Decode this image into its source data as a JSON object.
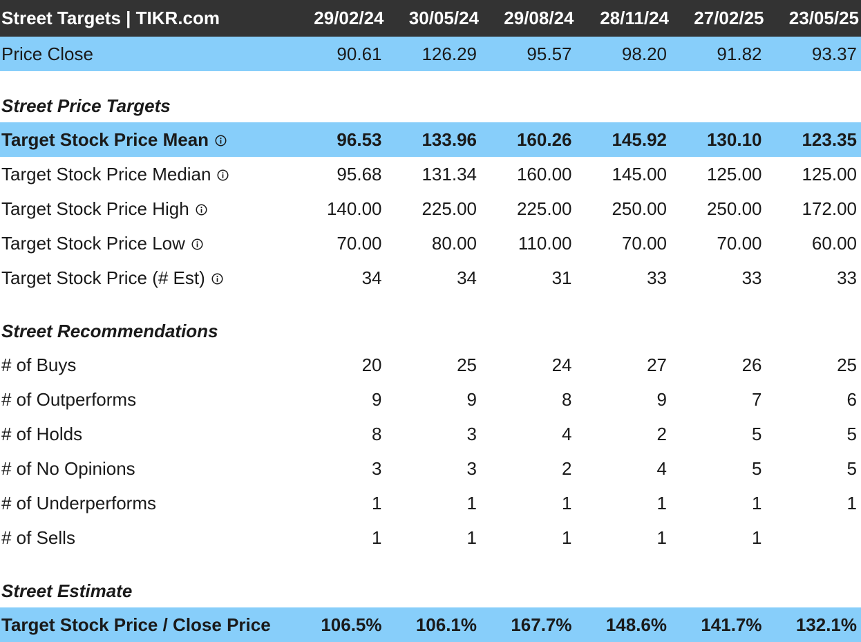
{
  "header": {
    "title": "Street Targets | TIKR.com",
    "dates": [
      "29/02/24",
      "30/05/24",
      "29/08/24",
      "28/11/24",
      "27/02/25",
      "23/05/25"
    ]
  },
  "price_close": {
    "label": "Price Close",
    "values": [
      "90.61",
      "126.29",
      "95.57",
      "98.20",
      "91.82",
      "93.37"
    ]
  },
  "sections": {
    "price_targets": "Street Price Targets",
    "recommendations": "Street Recommendations",
    "estimate": "Street Estimate"
  },
  "price_targets": [
    {
      "label": "Target Stock Price Mean",
      "values": [
        "96.53",
        "133.96",
        "160.26",
        "145.92",
        "130.10",
        "123.35"
      ]
    },
    {
      "label": "Target Stock Price Median",
      "values": [
        "95.68",
        "131.34",
        "160.00",
        "145.00",
        "125.00",
        "125.00"
      ]
    },
    {
      "label": "Target Stock Price High",
      "values": [
        "140.00",
        "225.00",
        "225.00",
        "250.00",
        "250.00",
        "172.00"
      ]
    },
    {
      "label": "Target Stock Price Low",
      "values": [
        "70.00",
        "80.00",
        "110.00",
        "70.00",
        "70.00",
        "60.00"
      ]
    },
    {
      "label": "Target Stock Price (# Est)",
      "values": [
        "34",
        "34",
        "31",
        "33",
        "33",
        "33"
      ]
    }
  ],
  "recommendations": [
    {
      "label": "# of Buys",
      "values": [
        "20",
        "25",
        "24",
        "27",
        "26",
        "25"
      ]
    },
    {
      "label": "# of Outperforms",
      "values": [
        "9",
        "9",
        "8",
        "9",
        "7",
        "6"
      ]
    },
    {
      "label": "# of Holds",
      "values": [
        "8",
        "3",
        "4",
        "2",
        "5",
        "5"
      ]
    },
    {
      "label": "# of No Opinions",
      "values": [
        "3",
        "3",
        "2",
        "4",
        "5",
        "5"
      ]
    },
    {
      "label": "# of Underperforms",
      "values": [
        "1",
        "1",
        "1",
        "1",
        "1",
        "1"
      ]
    },
    {
      "label": "# of Sells",
      "values": [
        "1",
        "1",
        "1",
        "1",
        "1",
        ""
      ]
    }
  ],
  "estimate": {
    "label": "Target Stock Price / Close Price",
    "values": [
      "106.5%",
      "106.1%",
      "167.7%",
      "148.6%",
      "141.7%",
      "132.1%"
    ]
  },
  "icons": {
    "info": "info-circle-icon"
  },
  "colors": {
    "header_bg": "#333333",
    "highlight_bg": "#87cefa",
    "text": "#1a1a1a"
  }
}
